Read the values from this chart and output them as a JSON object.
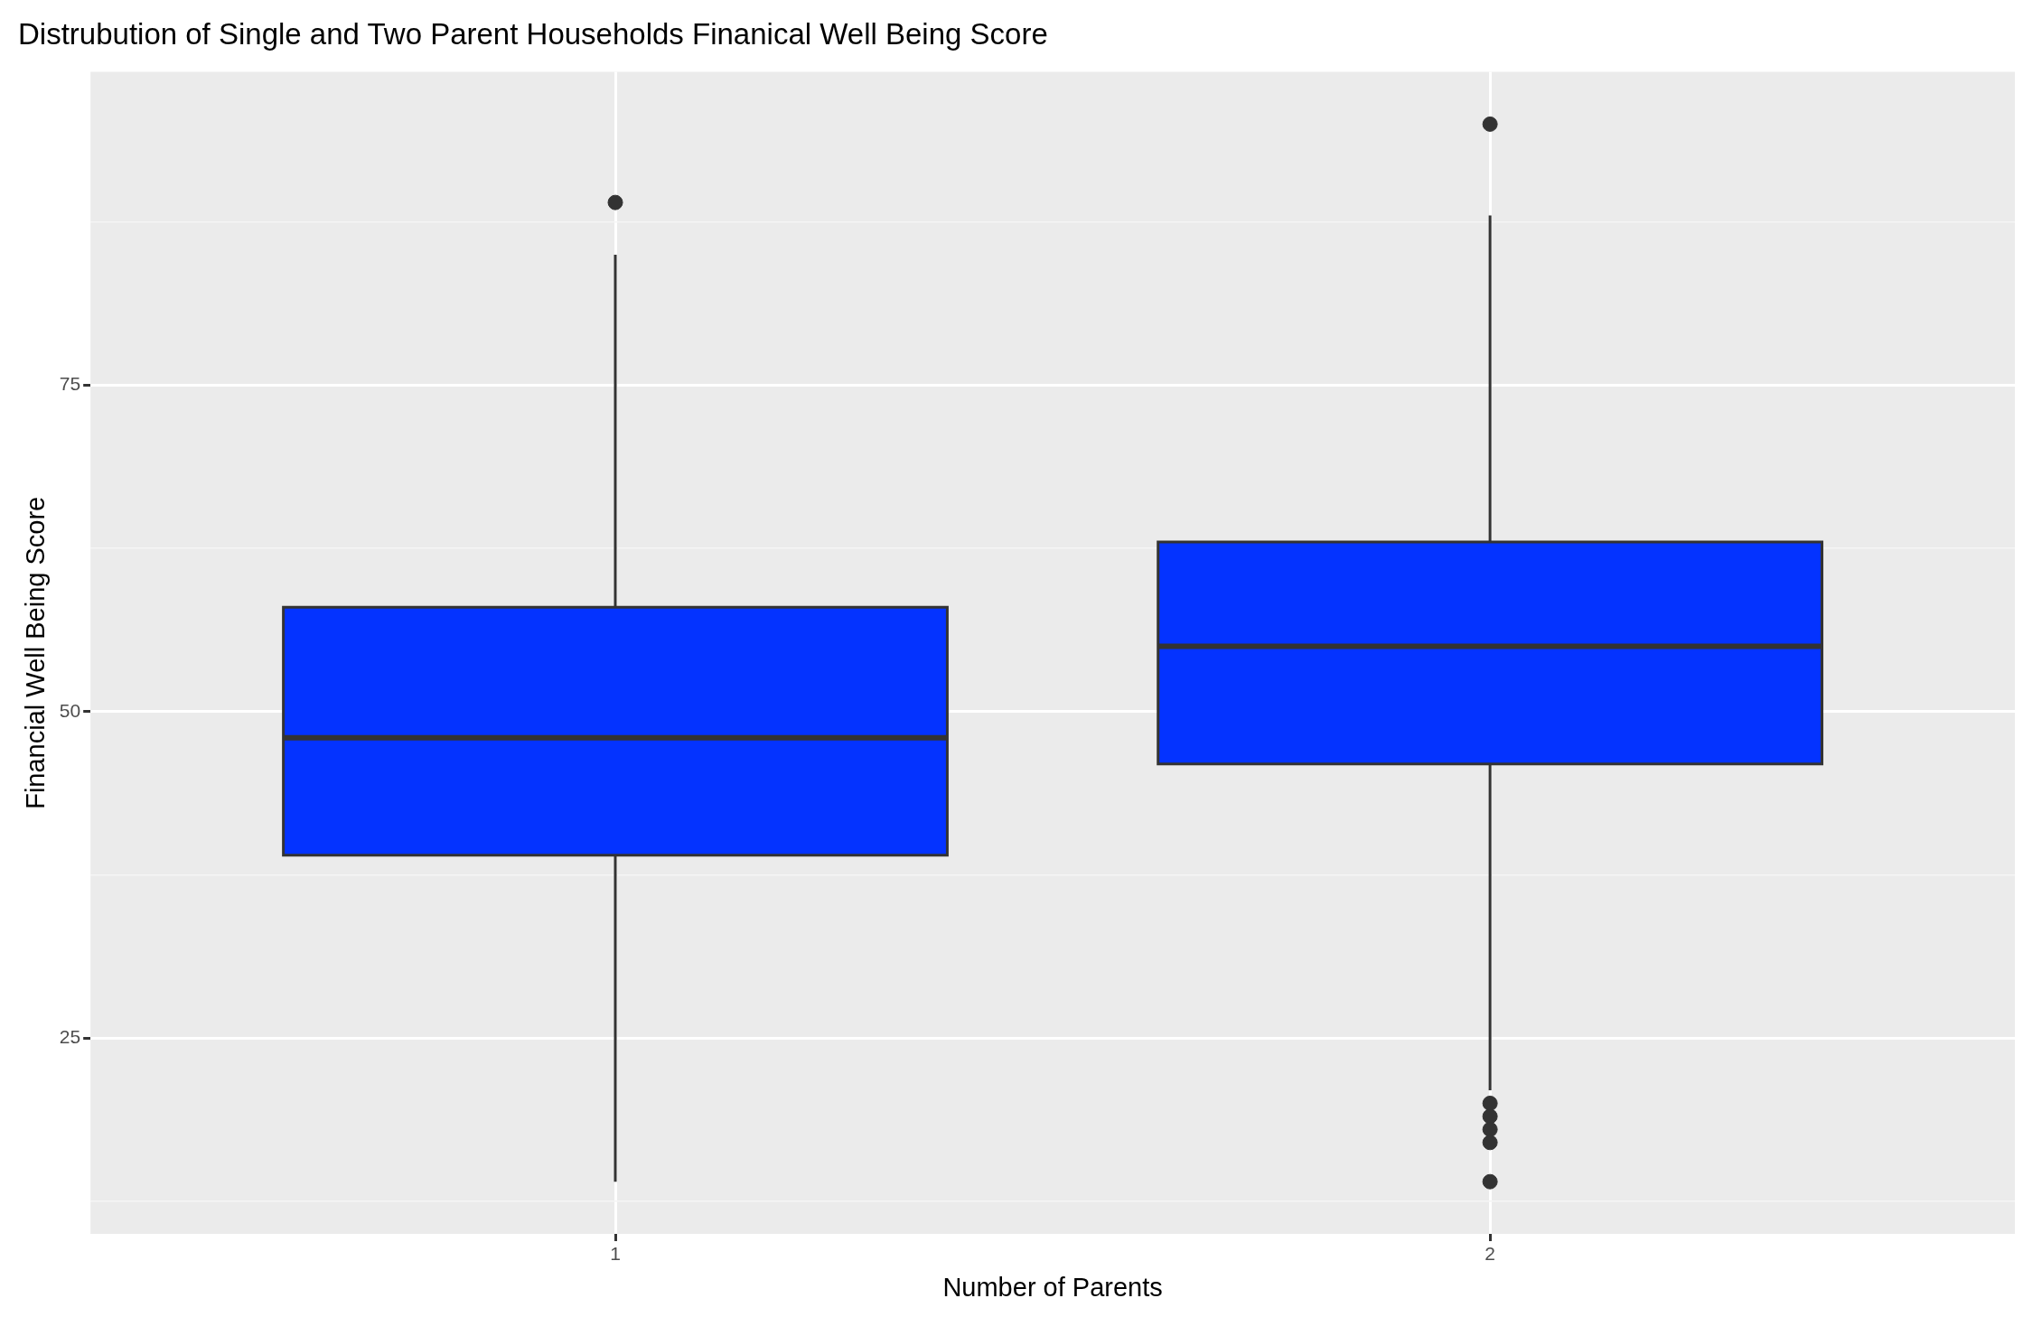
{
  "chart_data": {
    "type": "box",
    "title": "Distrubution of Single and Two Parent Households Finanical Well Being Score",
    "xlabel": "Number of Parents",
    "ylabel": "Financial Well Being Score",
    "categories": [
      "1",
      "2"
    ],
    "color": "#0433ff",
    "boxes": [
      {
        "low": 14,
        "q1": 39,
        "median": 48,
        "q3": 58,
        "high": 85,
        "outliers": [
          89
        ]
      },
      {
        "low": 21,
        "q1": 46,
        "median": 55,
        "q3": 63,
        "high": 88,
        "outliers": [
          95,
          20,
          19,
          18,
          17,
          14
        ]
      }
    ],
    "ylim": [
      10,
      99
    ],
    "yticks": [
      {
        "value": 12.5,
        "label": null
      },
      25,
      {
        "value": 37.5,
        "label": null
      },
      50,
      {
        "value": 62.5,
        "label": null
      },
      75,
      {
        "value": 87.5,
        "label": null
      }
    ],
    "grid": true
  }
}
